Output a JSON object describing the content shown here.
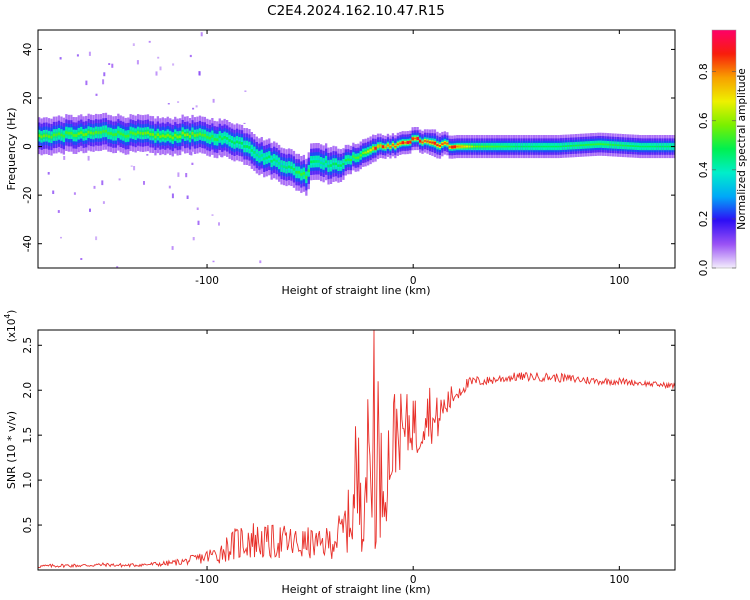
{
  "figure": {
    "title": "C2E4.2024.162.10.47.R15"
  },
  "chart_data": [
    {
      "type": "heatmap",
      "title": "C2E4.2024.162.10.47.R15",
      "xlabel": "Height of straight line (km)",
      "ylabel": "Frequency (Hz)",
      "xlim": [
        -182,
        127
      ],
      "ylim": [
        -50,
        48
      ],
      "xticks": [
        -100,
        0,
        100
      ],
      "xtick_labels": [
        "-100",
        "0",
        "100"
      ],
      "yticks": [
        -40,
        -20,
        0,
        20,
        40
      ],
      "ytick_labels": [
        "-40",
        "-20",
        "0",
        "20",
        "40"
      ],
      "colorbar": {
        "label": "Normalized spectral amplitude",
        "range": [
          0,
          0.97
        ],
        "ticks": [
          0,
          0.2,
          0.4,
          0.6,
          0.8
        ],
        "tick_labels": [
          "0.0",
          "0.2",
          "0.4",
          "0.6",
          "0.8"
        ],
        "colors": [
          "#f4eefc",
          "#9a52f5",
          "#2d0ef5",
          "#00a8f8",
          "#00eeca",
          "#00f050",
          "#7af000",
          "#eef000",
          "#f8a000",
          "#f81d0c",
          "#ff0068"
        ]
      },
      "ridge": {
        "x": [
          -182,
          -170,
          -160,
          -150,
          -140,
          -130,
          -120,
          -110,
          -100,
          -90,
          -80,
          -75,
          -70,
          -65,
          -60,
          -55,
          -52,
          -50,
          -45,
          -40,
          -35,
          -30,
          -25,
          -20,
          -15,
          -10,
          -5,
          0,
          5,
          10,
          15,
          20,
          30,
          50,
          70,
          90,
          110,
          127
        ],
        "y": [
          4,
          5,
          5,
          6,
          5,
          5,
          4,
          5,
          4,
          3,
          0,
          -4,
          -5,
          -7,
          -9,
          -11,
          -12,
          -6,
          -6,
          -8,
          -7,
          -5,
          -3,
          -1,
          0,
          0,
          1,
          3,
          2,
          1,
          1,
          0,
          0,
          0,
          0,
          1,
          0,
          0
        ],
        "amplitude": [
          0.6,
          0.55,
          0.6,
          0.55,
          0.55,
          0.6,
          0.6,
          0.62,
          0.55,
          0.5,
          0.5,
          0.45,
          0.5,
          0.45,
          0.5,
          0.55,
          0.55,
          0.5,
          0.45,
          0.5,
          0.5,
          0.55,
          0.6,
          0.75,
          0.8,
          0.85,
          0.85,
          0.85,
          0.85,
          0.9,
          0.85,
          0.85,
          0.6,
          0.5,
          0.5,
          0.55,
          0.5,
          0.5
        ],
        "width_hz": [
          4,
          4,
          4,
          4,
          4,
          4,
          4,
          4,
          4,
          4,
          4,
          4,
          4,
          4,
          4,
          4,
          4,
          4,
          4,
          4,
          3.5,
          3,
          3,
          3,
          2.5,
          2.5,
          2.5,
          2.5,
          2.5,
          3,
          2.5,
          2.5,
          2.5,
          2.5,
          2.5,
          2.5,
          2.5,
          2.5
        ]
      }
    },
    {
      "type": "line",
      "series_name": "SNR",
      "color": "#e8302a",
      "xlabel": "Height of straight line (km)",
      "ylabel": "SNR (10 * v/v)",
      "y_multiplier_label": "(x10",
      "y_multiplier_exp": "4",
      "xlim": [
        -182,
        127
      ],
      "ylim": [
        0,
        2.67
      ],
      "xticks": [
        -100,
        0,
        100
      ],
      "xtick_labels": [
        "-100",
        "0",
        "100"
      ],
      "yticks": [
        0.5,
        1.0,
        1.5,
        2.0,
        2.5
      ],
      "ytick_labels": [
        "0.5",
        "1.0",
        "1.5",
        "2.0",
        "2.5"
      ],
      "x": [
        -182,
        -170,
        -160,
        -150,
        -140,
        -130,
        -120,
        -110,
        -100,
        -95,
        -90,
        -85,
        -80,
        -75,
        -70,
        -65,
        -60,
        -55,
        -50,
        -45,
        -40,
        -35,
        -30,
        -28,
        -25,
        -22,
        -20,
        -18,
        -15,
        -12,
        -10,
        -8,
        -5,
        -2,
        0,
        2,
        5,
        8,
        10,
        12,
        15,
        18,
        20,
        25,
        30,
        35,
        40,
        50,
        60,
        70,
        80,
        90,
        100,
        110,
        120,
        127
      ],
      "y": [
        0.04,
        0.05,
        0.05,
        0.06,
        0.05,
        0.06,
        0.07,
        0.1,
        0.15,
        0.18,
        0.25,
        0.3,
        0.35,
        0.32,
        0.3,
        0.32,
        0.3,
        0.28,
        0.3,
        0.28,
        0.32,
        0.4,
        0.6,
        0.8,
        1.0,
        1.2,
        1.1,
        0.9,
        1.0,
        1.2,
        1.4,
        1.6,
        1.5,
        1.6,
        1.7,
        1.5,
        1.7,
        1.8,
        1.6,
        1.7,
        1.8,
        1.9,
        1.95,
        2.05,
        2.1,
        2.1,
        2.12,
        2.15,
        2.15,
        2.14,
        2.12,
        2.1,
        2.1,
        2.08,
        2.06,
        2.05
      ],
      "noise": [
        0.02,
        0.02,
        0.02,
        0.02,
        0.02,
        0.02,
        0.03,
        0.04,
        0.08,
        0.12,
        0.15,
        0.2,
        0.25,
        0.2,
        0.2,
        0.2,
        0.2,
        0.18,
        0.18,
        0.15,
        0.2,
        0.25,
        0.4,
        0.6,
        0.8,
        0.9,
        0.8,
        0.7,
        0.6,
        0.6,
        0.6,
        0.5,
        0.4,
        0.4,
        0.35,
        0.35,
        0.3,
        0.3,
        0.3,
        0.25,
        0.2,
        0.15,
        0.12,
        0.08,
        0.06,
        0.05,
        0.05,
        0.05,
        0.05,
        0.05,
        0.05,
        0.04,
        0.04,
        0.03,
        0.03,
        0.03
      ],
      "spikes": [
        {
          "x": -19,
          "y": 2.67
        },
        {
          "x": -17,
          "y": 2.1
        },
        {
          "x": -22,
          "y": 1.9
        },
        {
          "x": -28,
          "y": 1.6
        }
      ]
    }
  ]
}
